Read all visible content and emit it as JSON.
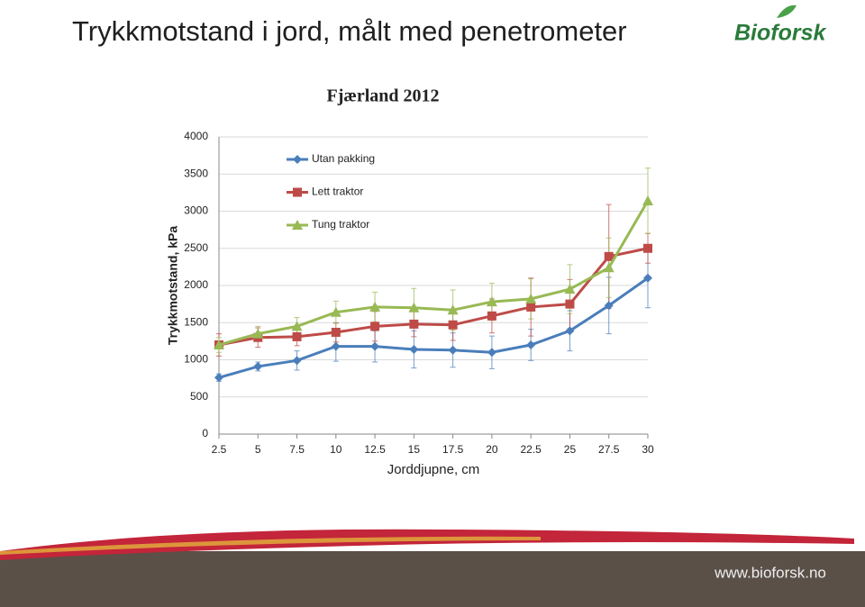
{
  "slide": {
    "title": "Trykkmotstand i jord, målt med penetrometer",
    "logo": "Bioforsk",
    "url": "www.bioforsk.no"
  },
  "chart_data": {
    "type": "line",
    "title": "Fjærland 2012",
    "x_label": "Jorddjupne, cm",
    "y_label": "Trykkmotstand, kPa",
    "x": [
      2.5,
      5,
      7.5,
      10,
      12.5,
      15,
      17.5,
      20,
      22.5,
      25,
      27.5,
      30
    ],
    "xlim": [
      2.5,
      30
    ],
    "xticks": [
      2.5,
      5,
      7.5,
      10,
      12.5,
      15,
      17.5,
      20,
      22.5,
      25,
      27.5,
      30
    ],
    "ylim": [
      0,
      4000
    ],
    "yticks": [
      0,
      500,
      1000,
      1500,
      2000,
      2500,
      3000,
      3500,
      4000
    ],
    "grid": true,
    "legend": "upper left",
    "series": [
      {
        "name": "Utan pakking",
        "color": "#4a7ebb",
        "marker": "diamond",
        "values": [
          760,
          910,
          990,
          1180,
          1180,
          1140,
          1130,
          1100,
          1200,
          1390,
          1730,
          2100
        ],
        "errors": [
          50,
          60,
          130,
          200,
          210,
          250,
          230,
          220,
          210,
          270,
          380,
          400
        ]
      },
      {
        "name": "Lett traktor",
        "color": "#be4b48",
        "marker": "square",
        "values": [
          1200,
          1300,
          1310,
          1370,
          1450,
          1480,
          1470,
          1590,
          1710,
          1750,
          2390,
          2500
        ],
        "errors": [
          150,
          130,
          120,
          130,
          200,
          170,
          210,
          230,
          390,
          330,
          700,
          200
        ]
      },
      {
        "name": "Tung traktor",
        "color": "#98b954",
        "marker": "triangle",
        "values": [
          1200,
          1350,
          1450,
          1640,
          1710,
          1700,
          1670,
          1780,
          1820,
          1950,
          2240,
          3140
        ],
        "errors": [
          100,
          100,
          120,
          150,
          200,
          260,
          270,
          250,
          270,
          330,
          400,
          440
        ]
      }
    ]
  }
}
